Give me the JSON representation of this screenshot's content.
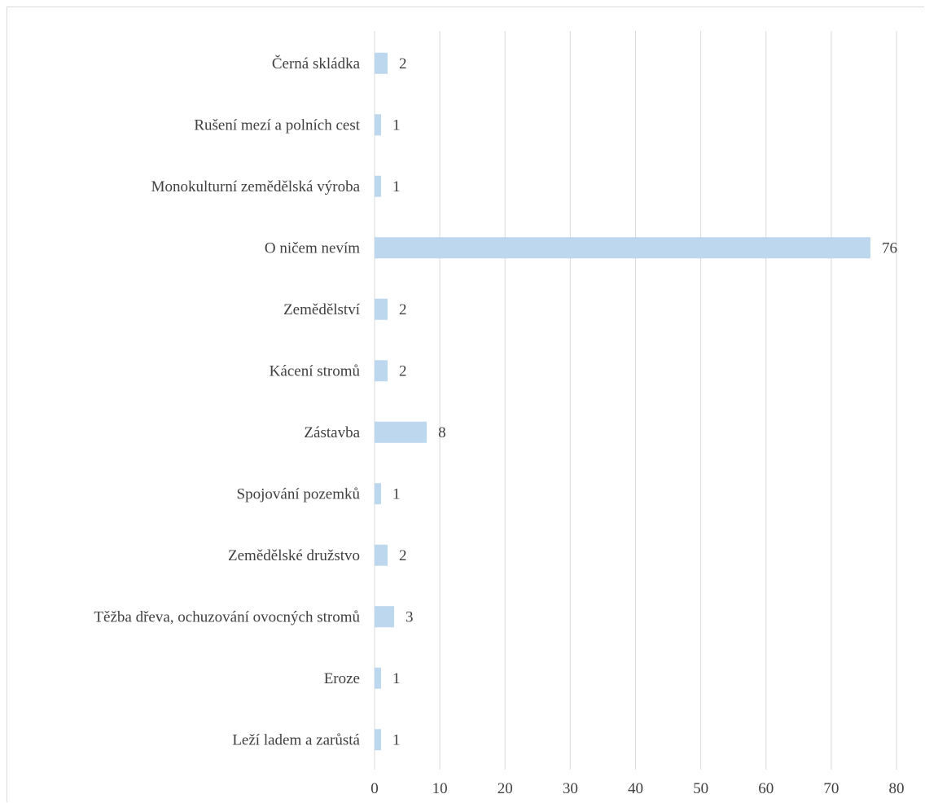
{
  "chart_data": {
    "type": "bar",
    "orientation": "horizontal",
    "categories": [
      "Černá skládka",
      "Rušení mezí a polních cest",
      "Monokulturní zemědělská výroba",
      "O ničem nevím",
      "Zemědělství",
      "Kácení stromů",
      "Zástavba",
      "Spojování pozemků",
      "Zemědělské družstvo",
      "Těžba dřeva, ochuzování ovocných stromů",
      "Eroze",
      "Leží ladem a zarůstá"
    ],
    "values": [
      2,
      1,
      1,
      76,
      2,
      2,
      8,
      1,
      2,
      3,
      1,
      1
    ],
    "data_labels": [
      "2",
      "1",
      "1",
      "76",
      "2",
      "2",
      "8",
      "1",
      "2",
      "3",
      "1",
      "1"
    ],
    "xlim": [
      0,
      80
    ],
    "xticks": [
      "0",
      "10",
      "20",
      "30",
      "40",
      "50",
      "60",
      "70",
      "80"
    ],
    "grid": true,
    "legend": "none",
    "colors": {
      "bar": "#bdd7ee",
      "grid": "#d9d9d9",
      "text": "#404040"
    }
  }
}
